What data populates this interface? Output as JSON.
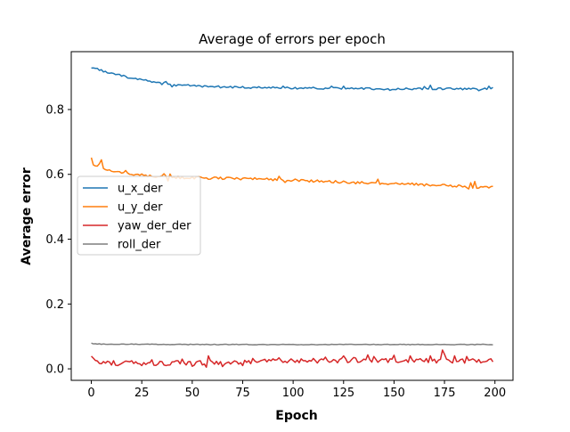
{
  "chart_data": {
    "type": "line",
    "title": "Average of errors per epoch",
    "xlabel": "Epoch",
    "ylabel": "Average error",
    "xlim": [
      -9.95,
      208.95
    ],
    "ylim": [
      -0.0355,
      0.9785
    ],
    "xticks": [
      0,
      25,
      50,
      75,
      100,
      125,
      150,
      175,
      200
    ],
    "yticks": [
      0.0,
      0.2,
      0.4,
      0.6,
      0.8
    ],
    "ytick_labels": [
      "0.0",
      "0.2",
      "0.4",
      "0.6",
      "0.8"
    ],
    "grid": false,
    "legend_position": "center-left",
    "x": {
      "start": 0,
      "end": 199,
      "step": 1
    },
    "series": [
      {
        "name": "u_x_der",
        "color": "#1f77b4",
        "keypoints": [
          [
            0,
            0.93
          ],
          [
            3,
            0.925
          ],
          [
            8,
            0.915
          ],
          [
            12,
            0.908
          ],
          [
            16,
            0.903
          ],
          [
            20,
            0.897
          ],
          [
            25,
            0.892
          ],
          [
            30,
            0.886
          ],
          [
            35,
            0.88
          ],
          [
            37,
            0.887
          ],
          [
            38,
            0.876
          ],
          [
            45,
            0.874
          ],
          [
            50,
            0.873
          ],
          [
            55,
            0.871
          ],
          [
            60,
            0.87
          ],
          [
            70,
            0.869
          ],
          [
            80,
            0.868
          ],
          [
            90,
            0.867
          ],
          [
            100,
            0.866
          ],
          [
            110,
            0.866
          ],
          [
            120,
            0.865
          ],
          [
            130,
            0.865
          ],
          [
            140,
            0.864
          ],
          [
            150,
            0.864
          ],
          [
            160,
            0.864
          ],
          [
            170,
            0.864
          ],
          [
            180,
            0.864
          ],
          [
            190,
            0.863
          ],
          [
            195,
            0.864
          ],
          [
            199,
            0.868
          ]
        ],
        "noise": 0.003,
        "spikes": [
          [
            0,
            0.928
          ],
          [
            2,
            0.927
          ],
          [
            9,
            0.912
          ],
          [
            40,
            0.87
          ],
          [
            48,
            0.877
          ],
          [
            63,
            0.873
          ],
          [
            95,
            0.872
          ],
          [
            119,
            0.872
          ],
          [
            125,
            0.872
          ],
          [
            136,
            0.867
          ],
          [
            148,
            0.859
          ],
          [
            165,
            0.871
          ],
          [
            168,
            0.875
          ],
          [
            192,
            0.858
          ],
          [
            197,
            0.872
          ]
        ]
      },
      {
        "name": "u_y_der",
        "color": "#ff7f0e",
        "keypoints": [
          [
            0,
            0.648
          ],
          [
            1,
            0.63
          ],
          [
            3,
            0.622
          ],
          [
            5,
            0.638
          ],
          [
            6,
            0.618
          ],
          [
            8,
            0.613
          ],
          [
            12,
            0.61
          ],
          [
            15,
            0.605
          ],
          [
            20,
            0.602
          ],
          [
            25,
            0.598
          ],
          [
            30,
            0.595
          ],
          [
            35,
            0.593
          ],
          [
            45,
            0.59
          ],
          [
            55,
            0.589
          ],
          [
            65,
            0.588
          ],
          [
            75,
            0.587
          ],
          [
            85,
            0.585
          ],
          [
            95,
            0.583
          ],
          [
            105,
            0.581
          ],
          [
            115,
            0.578
          ],
          [
            125,
            0.576
          ],
          [
            135,
            0.574
          ],
          [
            145,
            0.572
          ],
          [
            155,
            0.57
          ],
          [
            165,
            0.568
          ],
          [
            175,
            0.566
          ],
          [
            185,
            0.564
          ],
          [
            190,
            0.56
          ],
          [
            195,
            0.562
          ],
          [
            199,
            0.56
          ]
        ],
        "noise": 0.004,
        "spikes": [
          [
            5,
            0.645
          ],
          [
            11,
            0.608
          ],
          [
            17,
            0.612
          ],
          [
            36,
            0.602
          ],
          [
            38,
            0.58
          ],
          [
            39,
            0.601
          ],
          [
            93,
            0.594
          ],
          [
            96,
            0.575
          ],
          [
            142,
            0.585
          ],
          [
            183,
            0.565
          ],
          [
            187,
            0.555
          ],
          [
            188,
            0.574
          ],
          [
            190,
            0.578
          ],
          [
            191,
            0.557
          ]
        ]
      },
      {
        "name": "yaw_der_der",
        "color": "#d62728",
        "keypoints": [
          [
            0,
            0.042
          ],
          [
            2,
            0.028
          ],
          [
            5,
            0.02
          ],
          [
            10,
            0.016
          ],
          [
            20,
            0.018
          ],
          [
            30,
            0.017
          ],
          [
            40,
            0.018
          ],
          [
            50,
            0.018
          ],
          [
            60,
            0.019
          ],
          [
            70,
            0.02
          ],
          [
            80,
            0.022
          ],
          [
            90,
            0.024
          ],
          [
            100,
            0.024
          ],
          [
            110,
            0.025
          ],
          [
            120,
            0.025
          ],
          [
            130,
            0.026
          ],
          [
            140,
            0.027
          ],
          [
            150,
            0.026
          ],
          [
            160,
            0.026
          ],
          [
            170,
            0.025
          ],
          [
            180,
            0.025
          ],
          [
            190,
            0.024
          ],
          [
            199,
            0.026
          ]
        ],
        "noise": 0.007,
        "spikes": [
          [
            11,
            0.025
          ],
          [
            13,
            0.01
          ],
          [
            20,
            0.025
          ],
          [
            25,
            0.01
          ],
          [
            30,
            0.028
          ],
          [
            37,
            0.01
          ],
          [
            45,
            0.03
          ],
          [
            50,
            0.008
          ],
          [
            57,
            0.005
          ],
          [
            58,
            0.04
          ],
          [
            65,
            0.007
          ],
          [
            75,
            0.01
          ],
          [
            80,
            0.032
          ],
          [
            93,
            0.034
          ],
          [
            110,
            0.032
          ],
          [
            116,
            0.036
          ],
          [
            125,
            0.04
          ],
          [
            130,
            0.035
          ],
          [
            137,
            0.043
          ],
          [
            140,
            0.038
          ],
          [
            150,
            0.042
          ],
          [
            158,
            0.04
          ],
          [
            168,
            0.04
          ],
          [
            174,
            0.058
          ],
          [
            175,
            0.045
          ],
          [
            180,
            0.04
          ],
          [
            186,
            0.038
          ],
          [
            195,
            0.022
          ],
          [
            197,
            0.029
          ]
        ]
      },
      {
        "name": "roll_der",
        "color": "#7f7f7f",
        "keypoints": [
          [
            0,
            0.079
          ],
          [
            5,
            0.076
          ],
          [
            20,
            0.076
          ],
          [
            50,
            0.075
          ],
          [
            100,
            0.075
          ],
          [
            150,
            0.075
          ],
          [
            199,
            0.075
          ]
        ],
        "noise": 0.001,
        "spikes": [
          [
            1,
            0.077
          ]
        ]
      }
    ]
  }
}
